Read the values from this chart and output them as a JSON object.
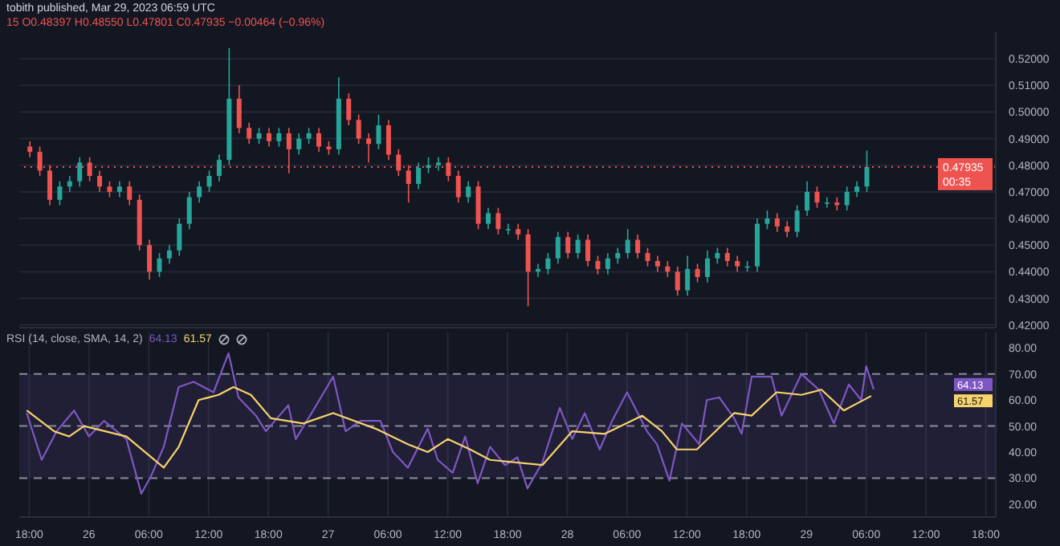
{
  "chart_data": [
    {
      "type": "candlestick",
      "title": "tobith published, Mar 29, 2023 06:59 UTC",
      "subtitle": "15 O0.48397 H0.48550 L0.47801 C0.47935 −0.00464 (−0.96%)",
      "x": [
        "2023-03-25T18:00",
        "2023-03-25T19:00",
        "2023-03-25T20:00",
        "2023-03-25T21:00",
        "2023-03-25T22:00",
        "2023-03-25T23:00",
        "2023-03-26T00:00",
        "2023-03-26T01:00",
        "2023-03-26T02:00",
        "2023-03-26T03:00",
        "2023-03-26T04:00",
        "2023-03-26T05:00",
        "2023-03-26T06:00",
        "2023-03-26T07:00",
        "2023-03-26T08:00",
        "2023-03-26T09:00",
        "2023-03-26T10:00",
        "2023-03-26T11:00",
        "2023-03-26T12:00",
        "2023-03-26T13:00",
        "2023-03-26T14:00",
        "2023-03-26T15:00",
        "2023-03-26T16:00",
        "2023-03-26T17:00",
        "2023-03-26T18:00",
        "2023-03-26T19:00",
        "2023-03-26T20:00",
        "2023-03-26T21:00",
        "2023-03-26T22:00",
        "2023-03-26T23:00",
        "2023-03-27T00:00",
        "2023-03-27T01:00",
        "2023-03-27T02:00",
        "2023-03-27T03:00",
        "2023-03-27T04:00",
        "2023-03-27T05:00",
        "2023-03-27T06:00",
        "2023-03-27T07:00",
        "2023-03-27T08:00",
        "2023-03-27T09:00",
        "2023-03-27T10:00",
        "2023-03-27T11:00",
        "2023-03-27T12:00",
        "2023-03-27T13:00",
        "2023-03-27T14:00",
        "2023-03-27T15:00",
        "2023-03-27T16:00",
        "2023-03-27T17:00",
        "2023-03-27T18:00",
        "2023-03-27T19:00",
        "2023-03-27T20:00",
        "2023-03-27T21:00",
        "2023-03-27T22:00",
        "2023-03-27T23:00",
        "2023-03-28T00:00",
        "2023-03-28T01:00",
        "2023-03-28T02:00",
        "2023-03-28T03:00",
        "2023-03-28T04:00",
        "2023-03-28T05:00",
        "2023-03-28T06:00",
        "2023-03-28T07:00",
        "2023-03-28T08:00",
        "2023-03-28T09:00",
        "2023-03-28T10:00",
        "2023-03-28T11:00",
        "2023-03-28T12:00",
        "2023-03-28T13:00",
        "2023-03-28T14:00",
        "2023-03-28T15:00",
        "2023-03-28T16:00",
        "2023-03-28T17:00",
        "2023-03-28T18:00",
        "2023-03-28T19:00",
        "2023-03-28T20:00",
        "2023-03-28T21:00",
        "2023-03-28T22:00",
        "2023-03-28T23:00",
        "2023-03-29T00:00",
        "2023-03-29T01:00",
        "2023-03-29T02:00",
        "2023-03-29T03:00",
        "2023-03-29T04:00",
        "2023-03-29T05:00",
        "2023-03-29T06:00"
      ],
      "ohlc": [
        [
          0.487,
          0.489,
          0.483,
          0.485
        ],
        [
          0.485,
          0.487,
          0.476,
          0.478
        ],
        [
          0.478,
          0.48,
          0.465,
          0.467
        ],
        [
          0.467,
          0.474,
          0.465,
          0.472
        ],
        [
          0.472,
          0.476,
          0.47,
          0.474
        ],
        [
          0.474,
          0.483,
          0.472,
          0.481
        ],
        [
          0.481,
          0.483,
          0.474,
          0.476
        ],
        [
          0.476,
          0.478,
          0.47,
          0.472
        ],
        [
          0.472,
          0.474,
          0.468,
          0.47
        ],
        [
          0.47,
          0.474,
          0.468,
          0.472
        ],
        [
          0.472,
          0.474,
          0.465,
          0.467
        ],
        [
          0.467,
          0.469,
          0.448,
          0.45
        ],
        [
          0.45,
          0.452,
          0.437,
          0.44
        ],
        [
          0.44,
          0.447,
          0.438,
          0.445
        ],
        [
          0.445,
          0.45,
          0.443,
          0.448
        ],
        [
          0.448,
          0.46,
          0.446,
          0.458
        ],
        [
          0.458,
          0.47,
          0.456,
          0.468
        ],
        [
          0.468,
          0.474,
          0.466,
          0.472
        ],
        [
          0.472,
          0.478,
          0.47,
          0.476
        ],
        [
          0.476,
          0.484,
          0.474,
          0.482
        ],
        [
          0.482,
          0.524,
          0.48,
          0.505
        ],
        [
          0.505,
          0.51,
          0.492,
          0.494
        ],
        [
          0.494,
          0.496,
          0.488,
          0.49
        ],
        [
          0.49,
          0.494,
          0.488,
          0.492
        ],
        [
          0.492,
          0.494,
          0.487,
          0.489
        ],
        [
          0.489,
          0.494,
          0.487,
          0.492
        ],
        [
          0.492,
          0.494,
          0.477,
          0.486
        ],
        [
          0.486,
          0.492,
          0.484,
          0.49
        ],
        [
          0.49,
          0.494,
          0.488,
          0.492
        ],
        [
          0.492,
          0.494,
          0.485,
          0.487
        ],
        [
          0.487,
          0.489,
          0.484,
          0.486
        ],
        [
          0.486,
          0.513,
          0.484,
          0.505
        ],
        [
          0.505,
          0.507,
          0.495,
          0.497
        ],
        [
          0.497,
          0.499,
          0.488,
          0.49
        ],
        [
          0.49,
          0.492,
          0.481,
          0.488
        ],
        [
          0.488,
          0.499,
          0.486,
          0.495
        ],
        [
          0.495,
          0.497,
          0.482,
          0.484
        ],
        [
          0.484,
          0.486,
          0.476,
          0.478
        ],
        [
          0.478,
          0.48,
          0.466,
          0.473
        ],
        [
          0.473,
          0.481,
          0.471,
          0.479
        ],
        [
          0.479,
          0.483,
          0.477,
          0.48
        ],
        [
          0.48,
          0.483,
          0.478,
          0.481
        ],
        [
          0.481,
          0.483,
          0.474,
          0.476
        ],
        [
          0.476,
          0.478,
          0.466,
          0.468
        ],
        [
          0.468,
          0.474,
          0.466,
          0.472
        ],
        [
          0.472,
          0.474,
          0.456,
          0.458
        ],
        [
          0.458,
          0.464,
          0.456,
          0.462
        ],
        [
          0.462,
          0.464,
          0.454,
          0.456
        ],
        [
          0.456,
          0.458,
          0.454,
          0.456
        ],
        [
          0.456,
          0.458,
          0.452,
          0.454
        ],
        [
          0.454,
          0.456,
          0.427,
          0.44
        ],
        [
          0.44,
          0.443,
          0.438,
          0.441
        ],
        [
          0.441,
          0.447,
          0.439,
          0.445
        ],
        [
          0.445,
          0.455,
          0.443,
          0.453
        ],
        [
          0.453,
          0.455,
          0.445,
          0.447
        ],
        [
          0.447,
          0.454,
          0.445,
          0.452
        ],
        [
          0.452,
          0.454,
          0.442,
          0.444
        ],
        [
          0.444,
          0.446,
          0.439,
          0.441
        ],
        [
          0.441,
          0.447,
          0.439,
          0.445
        ],
        [
          0.445,
          0.449,
          0.443,
          0.447
        ],
        [
          0.447,
          0.456,
          0.445,
          0.452
        ],
        [
          0.452,
          0.454,
          0.445,
          0.447
        ],
        [
          0.447,
          0.449,
          0.442,
          0.444
        ],
        [
          0.444,
          0.446,
          0.44,
          0.442
        ],
        [
          0.442,
          0.444,
          0.438,
          0.44
        ],
        [
          0.44,
          0.442,
          0.431,
          0.433
        ],
        [
          0.433,
          0.446,
          0.431,
          0.441
        ],
        [
          0.441,
          0.443,
          0.436,
          0.438
        ],
        [
          0.438,
          0.448,
          0.436,
          0.445
        ],
        [
          0.445,
          0.449,
          0.443,
          0.447
        ],
        [
          0.447,
          0.449,
          0.442,
          0.444
        ],
        [
          0.444,
          0.446,
          0.44,
          0.442
        ],
        [
          0.442,
          0.444,
          0.44,
          0.442
        ],
        [
          0.442,
          0.46,
          0.44,
          0.458
        ],
        [
          0.458,
          0.463,
          0.456,
          0.46
        ],
        [
          0.46,
          0.462,
          0.455,
          0.457
        ],
        [
          0.457,
          0.459,
          0.453,
          0.455
        ],
        [
          0.455,
          0.465,
          0.453,
          0.463
        ],
        [
          0.463,
          0.474,
          0.461,
          0.47
        ],
        [
          0.47,
          0.472,
          0.464,
          0.466
        ],
        [
          0.466,
          0.468,
          0.464,
          0.466
        ],
        [
          0.466,
          0.468,
          0.463,
          0.465
        ],
        [
          0.465,
          0.472,
          0.463,
          0.47
        ],
        [
          0.47,
          0.474,
          0.468,
          0.472
        ],
        [
          0.472,
          0.4855,
          0.47,
          0.47935
        ]
      ],
      "colors": [
        "#ef5350",
        "#ef5350",
        "#ef5350",
        "#26a69a",
        "#26a69a",
        "#26a69a",
        "#ef5350",
        "#ef5350",
        "#ef5350",
        "#26a69a",
        "#ef5350",
        "#ef5350",
        "#ef5350",
        "#26a69a",
        "#26a69a",
        "#26a69a",
        "#26a69a",
        "#26a69a",
        "#26a69a",
        "#26a69a",
        "#26a69a",
        "#ef5350",
        "#ef5350",
        "#26a69a",
        "#ef5350",
        "#26a69a",
        "#ef5350",
        "#26a69a",
        "#26a69a",
        "#ef5350",
        "#ef5350",
        "#26a69a",
        "#ef5350",
        "#ef5350",
        "#ef5350",
        "#26a69a",
        "#ef5350",
        "#ef5350",
        "#ef5350",
        "#26a69a",
        "#26a69a",
        "#26a69a",
        "#ef5350",
        "#ef5350",
        "#26a69a",
        "#ef5350",
        "#26a69a",
        "#ef5350",
        "#26a69a",
        "#ef5350",
        "#ef5350",
        "#26a69a",
        "#26a69a",
        "#26a69a",
        "#ef5350",
        "#26a69a",
        "#ef5350",
        "#ef5350",
        "#26a69a",
        "#26a69a",
        "#26a69a",
        "#ef5350",
        "#ef5350",
        "#ef5350",
        "#ef5350",
        "#ef5350",
        "#26a69a",
        "#ef5350",
        "#26a69a",
        "#26a69a",
        "#ef5350",
        "#ef5350",
        "#26a69a",
        "#26a69a",
        "#26a69a",
        "#ef5350",
        "#ef5350",
        "#26a69a",
        "#26a69a",
        "#ef5350",
        "#26a69a",
        "#ef5350",
        "#26a69a",
        "#26a69a",
        "#26a69a"
      ],
      "xlim": [
        "2023-03-25T17:00",
        "2023-03-29T19:00"
      ],
      "xticks": [
        {
          "value": "2023-03-25T18:00",
          "label": null
        },
        {
          "value": "2023-03-26T00:00",
          "label": null
        },
        {
          "value": "2023-03-26T06:00",
          "label": null
        },
        {
          "value": "2023-03-26T12:00",
          "label": null
        },
        {
          "value": "2023-03-26T18:00",
          "label": null
        },
        {
          "value": "2023-03-27T00:00",
          "label": null
        },
        {
          "value": "2023-03-27T06:00",
          "label": null
        },
        {
          "value": "2023-03-27T12:00",
          "label": null
        },
        {
          "value": "2023-03-27T18:00",
          "label": null
        },
        {
          "value": "2023-03-28T00:00",
          "label": null
        },
        {
          "value": "2023-03-28T06:00",
          "label": null
        },
        {
          "value": "2023-03-28T12:00",
          "label": null
        },
        {
          "value": "2023-03-28T18:00",
          "label": null
        },
        {
          "value": "2023-03-29T00:00",
          "label": null
        },
        {
          "value": "2023-03-29T06:00",
          "label": null
        },
        {
          "value": "2023-03-29T12:00",
          "label": null
        },
        {
          "value": "2023-03-29T18:00",
          "label": null
        }
      ],
      "ylim": [
        0.419,
        0.53
      ],
      "yticks": [
        {
          "value": 0.42,
          "label": "0.42000"
        },
        {
          "value": 0.43,
          "label": "0.43000"
        },
        {
          "value": 0.44,
          "label": "0.44000"
        },
        {
          "value": 0.45,
          "label": "0.45000"
        },
        {
          "value": 0.46,
          "label": "0.46000"
        },
        {
          "value": 0.47,
          "label": "0.47000"
        },
        {
          "value": 0.48,
          "label": "0.48000"
        },
        {
          "value": 0.49,
          "label": "0.49000"
        },
        {
          "value": 0.5,
          "label": "0.50000"
        },
        {
          "value": 0.51,
          "label": "0.51000"
        },
        {
          "value": 0.52,
          "label": "0.52000"
        }
      ],
      "ref_lines": [
        {
          "axis": "y",
          "value": 0.47935,
          "label": "0.47935",
          "color": "#ef5350",
          "line_style": "dotted"
        }
      ],
      "annotations": [
        "00:35"
      ],
      "grid": true,
      "tick_labels": "y"
    },
    {
      "type": "line",
      "title": "RSI (14, close, SMA, 14, 2)",
      "series": [
        {
          "color": "#7e57c2",
          "x": [
            "2023-03-25T17:45",
            "2023-03-25T19:15",
            "2023-03-25T20:45",
            "2023-03-25T22:30",
            "2023-03-26T00:00",
            "2023-03-26T01:30",
            "2023-03-26T03:45",
            "2023-03-26T05:15",
            "2023-03-26T06:15",
            "2023-03-26T07:30",
            "2023-03-26T09:00",
            "2023-03-26T10:30",
            "2023-03-26T12:30",
            "2023-03-26T14:00",
            "2023-03-26T15:00",
            "2023-03-26T16:45",
            "2023-03-26T17:45",
            "2023-03-26T20:00",
            "2023-03-26T20:45",
            "2023-03-26T22:30",
            "2023-03-27T00:30",
            "2023-03-27T01:45",
            "2023-03-27T03:15",
            "2023-03-27T05:15",
            "2023-03-27T06:30",
            "2023-03-27T08:00",
            "2023-03-27T10:00",
            "2023-03-27T11:00",
            "2023-03-27T12:30",
            "2023-03-27T13:45",
            "2023-03-27T15:00",
            "2023-03-27T16:15",
            "2023-03-27T17:45",
            "2023-03-27T19:00",
            "2023-03-27T20:00",
            "2023-03-27T21:30",
            "2023-03-27T23:15",
            "2023-03-28T00:30",
            "2023-03-28T01:45",
            "2023-03-28T03:15",
            "2023-03-28T04:30",
            "2023-03-28T06:00",
            "2023-03-28T08:00",
            "2023-03-28T09:00",
            "2023-03-28T10:15",
            "2023-03-28T11:30",
            "2023-03-28T13:15",
            "2023-03-28T14:00",
            "2023-03-28T15:15",
            "2023-03-28T16:45",
            "2023-03-28T17:30",
            "2023-03-28T18:30",
            "2023-03-28T20:30",
            "2023-03-28T21:30",
            "2023-03-28T23:30",
            "2023-03-29T01:15",
            "2023-03-29T02:45",
            "2023-03-29T04:15",
            "2023-03-29T05:30",
            "2023-03-29T06:00",
            "2023-03-29T06:45"
          ],
          "values": [
            55,
            37,
            48,
            56,
            46,
            52,
            45,
            24,
            31,
            42,
            65,
            67,
            63,
            78,
            61,
            54,
            48,
            58,
            45,
            56,
            69,
            48,
            52,
            52,
            40,
            34,
            49,
            37,
            32,
            46,
            28,
            42,
            35,
            38,
            26,
            36,
            57,
            45,
            55,
            41,
            52,
            63,
            48,
            43,
            29,
            51,
            43,
            60,
            61,
            53,
            47,
            69,
            69,
            54,
            70,
            64,
            51,
            66,
            60,
            73,
            64.13
          ]
        },
        {
          "color": "#f7d36b",
          "x": [
            "2023-03-25T17:45",
            "2023-03-25T20:30",
            "2023-03-25T22:00",
            "2023-03-25T23:30",
            "2023-03-26T03:45",
            "2023-03-26T07:30",
            "2023-03-26T09:00",
            "2023-03-26T11:00",
            "2023-03-26T13:00",
            "2023-03-26T14:30",
            "2023-03-26T16:15",
            "2023-03-26T18:15",
            "2023-03-26T21:30",
            "2023-03-27T00:30",
            "2023-03-27T04:45",
            "2023-03-27T08:00",
            "2023-03-27T10:00",
            "2023-03-27T12:00",
            "2023-03-27T14:15",
            "2023-03-27T16:15",
            "2023-03-27T21:30",
            "2023-03-28T00:30",
            "2023-03-28T03:45",
            "2023-03-28T07:30",
            "2023-03-28T09:30",
            "2023-03-28T11:00",
            "2023-03-28T13:00",
            "2023-03-28T16:45",
            "2023-03-28T18:30",
            "2023-03-28T21:00",
            "2023-03-28T23:30",
            "2023-03-29T01:30",
            "2023-03-29T03:45",
            "2023-03-29T06:30"
          ],
          "values": [
            56,
            48,
            46,
            50,
            46,
            34,
            42,
            60,
            62,
            65,
            62,
            53,
            51,
            55,
            49,
            43,
            40,
            45,
            41,
            37,
            35,
            48,
            47,
            54,
            48,
            41,
            41,
            55,
            54,
            63,
            62,
            64,
            56,
            61.57
          ]
        }
      ],
      "xlim": [
        "2023-03-25T17:00",
        "2023-03-29T19:00"
      ],
      "xticks": [
        {
          "value": "2023-03-25T18:00",
          "label": "18:00"
        },
        {
          "value": "2023-03-26T00:00",
          "label": "26"
        },
        {
          "value": "2023-03-26T06:00",
          "label": "06:00"
        },
        {
          "value": "2023-03-26T12:00",
          "label": "12:00"
        },
        {
          "value": "2023-03-26T18:00",
          "label": "18:00"
        },
        {
          "value": "2023-03-27T00:00",
          "label": "27"
        },
        {
          "value": "2023-03-27T06:00",
          "label": "06:00"
        },
        {
          "value": "2023-03-27T12:00",
          "label": "12:00"
        },
        {
          "value": "2023-03-27T18:00",
          "label": "18:00"
        },
        {
          "value": "2023-03-28T00:00",
          "label": "28"
        },
        {
          "value": "2023-03-28T06:00",
          "label": "06:00"
        },
        {
          "value": "2023-03-28T12:00",
          "label": "12:00"
        },
        {
          "value": "2023-03-28T18:00",
          "label": "18:00"
        },
        {
          "value": "2023-03-29T00:00",
          "label": "29"
        },
        {
          "value": "2023-03-29T06:00",
          "label": "06:00"
        },
        {
          "value": "2023-03-29T12:00",
          "label": "12:00"
        },
        {
          "value": "2023-03-29T18:00",
          "label": "18:00"
        }
      ],
      "ylim": [
        15,
        86
      ],
      "yticks": [
        {
          "value": 20,
          "label": "20.00"
        },
        {
          "value": 30,
          "label": "30.00"
        },
        {
          "value": 40,
          "label": "40.00"
        },
        {
          "value": 50,
          "label": "50.00"
        },
        {
          "value": 60,
          "label": "60.00"
        },
        {
          "value": 70,
          "label": "70.00"
        },
        {
          "value": 80,
          "label": "80.00"
        }
      ],
      "ref_lines": [
        {
          "axis": "y",
          "value": 30,
          "color": "#8a8d99",
          "line_style": "dashed"
        },
        {
          "axis": "y",
          "value": 50,
          "color": "#8a8d99",
          "line_style": "dashed"
        },
        {
          "axis": "y",
          "value": 70,
          "color": "#8a8d99",
          "line_style": "dashed"
        }
      ],
      "bands": [
        {
          "axis": "y",
          "from": 30,
          "to": 70,
          "color": "#7e57c2"
        }
      ],
      "annotations": [
        "64.13",
        "61.57"
      ],
      "grid": "x"
    }
  ]
}
